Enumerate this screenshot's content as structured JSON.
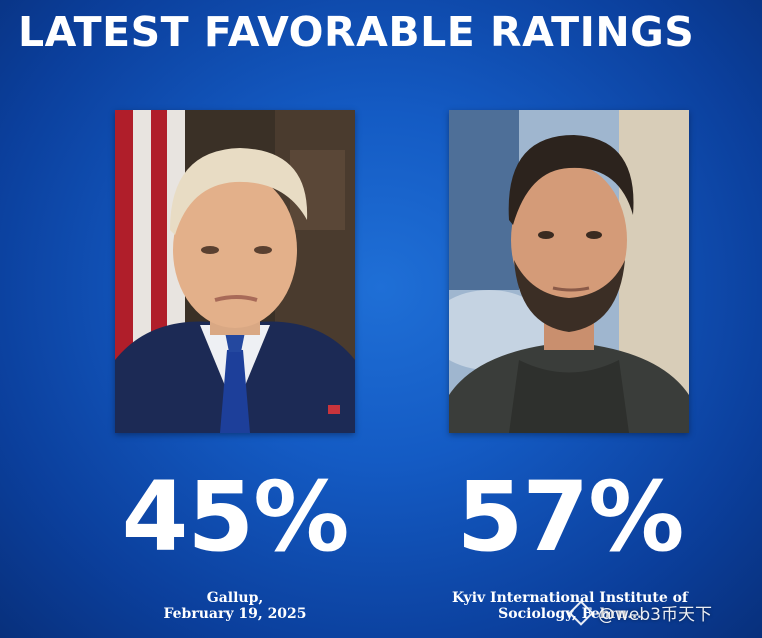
{
  "title": "LATEST FAVORABLE RATINGS",
  "left": {
    "photo_icon": "portrait-photo",
    "percentage": "45%",
    "source_line1": "Gallup,",
    "source_line2": "February 19, 2025"
  },
  "right": {
    "photo_icon": "portrait-photo",
    "percentage": "57%",
    "source_line1": "Kyiv International Institute of",
    "source_line2": "Sociology, Febru..."
  },
  "watermark": {
    "text": "@web3币天下",
    "icon": "diamond-logo"
  },
  "colors": {
    "background": "#145bc4",
    "text": "#ffffff"
  }
}
